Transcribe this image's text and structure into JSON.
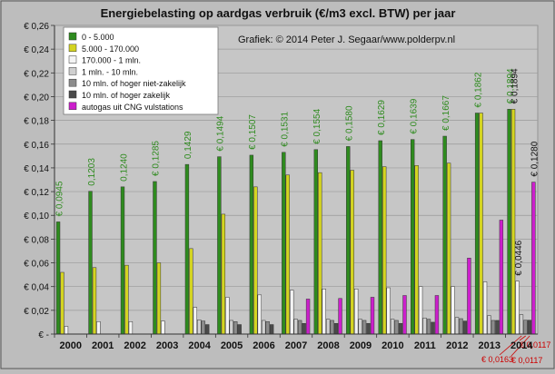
{
  "chart_data": {
    "type": "bar",
    "title": "Energiebelasting op aardgas verbruik (€/m3 excl. BTW) per jaar",
    "subtitle": "Grafiek: © 2014 Peter J. Segaar/www.polderpv.nl",
    "ylim": [
      0,
      0.26
    ],
    "yticks": [
      "€ -",
      "€ 0,02",
      "€ 0,04",
      "€ 0,06",
      "€ 0,08",
      "€ 0,10",
      "€ 0,12",
      "€ 0,14",
      "€ 0,16",
      "€ 0,18",
      "€ 0,20",
      "€ 0,22",
      "€ 0,24",
      "€ 0,26"
    ],
    "categories": [
      "2000",
      "2001",
      "2002",
      "2003",
      "2004",
      "2005",
      "2006",
      "2007",
      "2008",
      "2009",
      "2010",
      "2011",
      "2012",
      "2013",
      "2014"
    ],
    "legend_position": "top-left",
    "series": [
      {
        "name": "0 - 5.000",
        "color": "#2e8b1e",
        "label_color": "#2e8b1e",
        "values": [
          0.0945,
          0.1203,
          0.124,
          0.1285,
          0.1429,
          0.1494,
          0.1507,
          0.1531,
          0.1554,
          0.158,
          0.1629,
          0.1639,
          0.1667,
          0.1862,
          0.1894
        ],
        "data_labels": [
          "€ 0,0945",
          "0,1203",
          "0,1240",
          "€ 0,1285",
          "0,1429",
          "€ 0,1494",
          "€ 0,1507",
          "€ 0,1531",
          "€ 0,1554",
          "€ 0,1580",
          "€ 0,1629",
          "€ 0,1639",
          "€ 0,1667",
          "€ 0,1862",
          "€ 0,1894"
        ]
      },
      {
        "name": "5.000 - 170.000",
        "color": "#d4d421",
        "values": [
          0.052,
          0.056,
          0.058,
          0.06,
          0.072,
          0.101,
          0.124,
          0.134,
          0.136,
          0.138,
          0.141,
          0.142,
          0.144,
          0.1862,
          0.1894
        ],
        "data_labels": [
          "",
          "",
          "",
          "",
          "",
          "",
          "",
          "",
          "",
          "",
          "",
          "",
          "",
          "",
          "€ 0,1894"
        ]
      },
      {
        "name": "170.000 - 1 mln.",
        "color": "#f4f4f4",
        "values": [
          0.0065,
          0.0105,
          0.0105,
          0.011,
          0.0225,
          0.031,
          0.033,
          0.037,
          0.038,
          0.038,
          0.039,
          0.04,
          0.04,
          0.044,
          0.0446
        ],
        "data_labels": [
          "",
          "",
          "",
          "",
          "",
          "",
          "",
          "",
          "",
          "",
          "",
          "",
          "",
          "",
          "€ 0,0446"
        ]
      },
      {
        "name": "1 mln. - 10 mln.",
        "color": "#d0d0d0",
        "values": [
          0,
          0,
          0,
          0,
          0.012,
          0.0115,
          0.0115,
          0.0125,
          0.0125,
          0.0125,
          0.0125,
          0.0135,
          0.014,
          0.0155,
          0.0163
        ],
        "data_labels": [
          "",
          "",
          "",
          "",
          "",
          "",
          "",
          "",
          "",
          "",
          "",
          "",
          "",
          "",
          "€ 0,0163"
        ]
      },
      {
        "name": "10 mln. of hoger niet-zakelijk",
        "color": "#8c8c8c",
        "values": [
          0,
          0,
          0,
          0,
          0.011,
          0.0105,
          0.0105,
          0.0115,
          0.0115,
          0.0115,
          0.0115,
          0.0125,
          0.013,
          0.0115,
          0.0117
        ],
        "data_labels": [
          "",
          "",
          "",
          "",
          "",
          "",
          "",
          "",
          "",
          "",
          "",
          "",
          "",
          "",
          "€ 0,0117"
        ]
      },
      {
        "name": "10 mln. of hoger zakelijk",
        "color": "#4a4a4a",
        "values": [
          0,
          0,
          0,
          0,
          0.008,
          0.008,
          0.008,
          0.009,
          0.009,
          0.009,
          0.009,
          0.01,
          0.011,
          0.0115,
          0.0117
        ],
        "data_labels": [
          "",
          "",
          "",
          "",
          "",
          "",
          "",
          "",
          "",
          "",
          "",
          "",
          "",
          "",
          "€ 0,0117"
        ]
      },
      {
        "name": "autogas uit CNG vulstations",
        "color": "#cc1fcc",
        "values": [
          0,
          0,
          0,
          0,
          0,
          0,
          0,
          0.0295,
          0.03,
          0.031,
          0.0325,
          0.0325,
          0.064,
          0.096,
          0.128
        ],
        "data_labels": [
          "",
          "",
          "",
          "",
          "",
          "",
          "",
          "",
          "",
          "",
          "",
          "",
          "",
          "",
          "€ 0,1280"
        ]
      }
    ]
  }
}
